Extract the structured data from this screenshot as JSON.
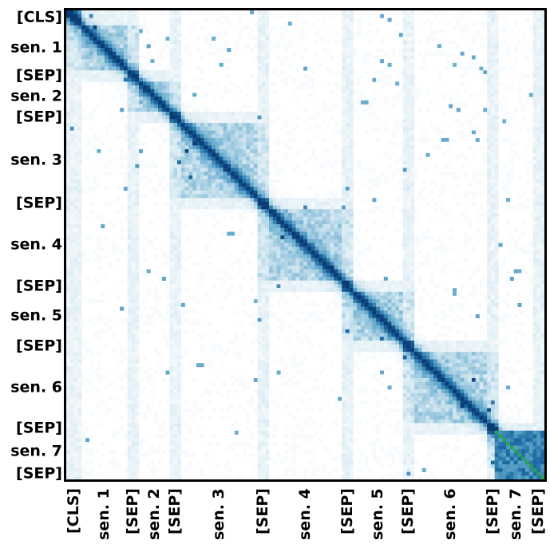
{
  "chart_data": {
    "type": "heatmap",
    "title": "",
    "xlabel": "",
    "ylabel": "",
    "colormap": [
      "#ffffff",
      "#d6e9f2",
      "#6fb0d1",
      "#1d6fa6",
      "#0b3b73",
      "#2aa35a"
    ],
    "tokens_total": 125,
    "segments": [
      {
        "label": "[CLS]",
        "start": 0,
        "end": 4
      },
      {
        "label": "sen. 1",
        "start": 4,
        "end": 16
      },
      {
        "label": "[SEP]",
        "start": 16,
        "end": 19
      },
      {
        "label": "sen. 2",
        "start": 19,
        "end": 27
      },
      {
        "label": "[SEP]",
        "start": 27,
        "end": 30
      },
      {
        "label": "sen. 3",
        "start": 30,
        "end": 50
      },
      {
        "label": "[SEP]",
        "start": 50,
        "end": 53
      },
      {
        "label": "sen. 4",
        "start": 53,
        "end": 72
      },
      {
        "label": "[SEP]",
        "start": 72,
        "end": 75
      },
      {
        "label": "sen. 5",
        "start": 75,
        "end": 88
      },
      {
        "label": "[SEP]",
        "start": 88,
        "end": 91
      },
      {
        "label": "sen. 6",
        "start": 91,
        "end": 110
      },
      {
        "label": "[SEP]",
        "start": 110,
        "end": 113
      },
      {
        "label": "sen. 7",
        "start": 113,
        "end": 122
      },
      {
        "label": "[SEP]",
        "start": 122,
        "end": 125
      }
    ]
  }
}
